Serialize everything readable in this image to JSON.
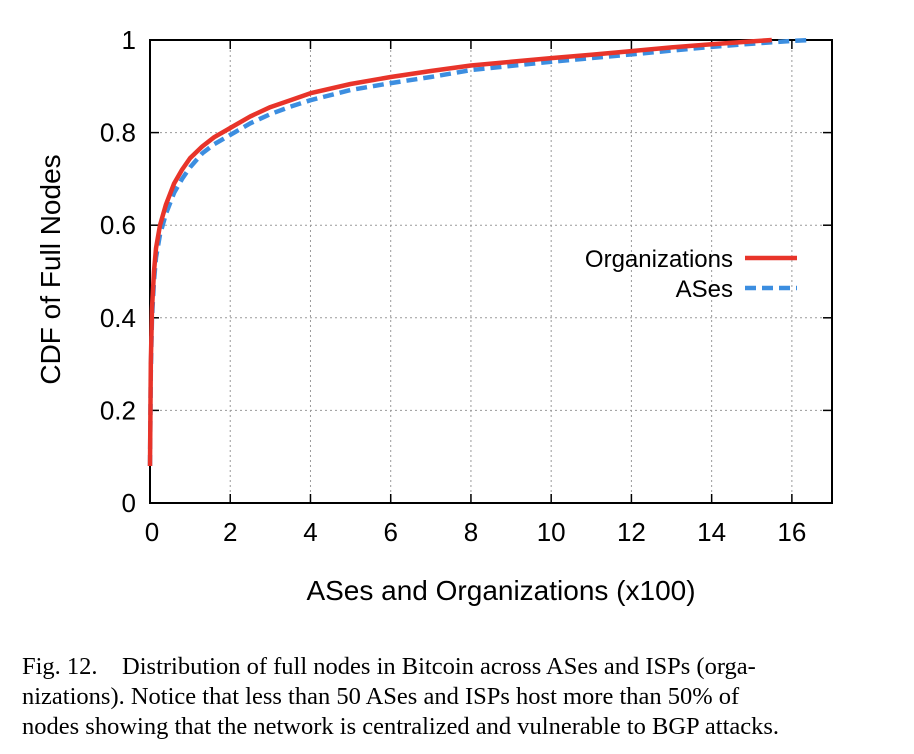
{
  "chart_data": {
    "type": "line",
    "title": "",
    "xlabel": "ASes and Organizations (x100)",
    "ylabel": "CDF of Full Nodes",
    "xlim": [
      0,
      17
    ],
    "ylim": [
      0,
      1
    ],
    "xticks": [
      0,
      2,
      4,
      6,
      8,
      10,
      12,
      14,
      16
    ],
    "yticks": [
      0,
      0.2,
      0.4,
      0.6,
      0.8,
      1
    ],
    "grid": true,
    "legend": "center-right",
    "series": [
      {
        "name": "Organizations",
        "color": "#e8342a",
        "style": "solid",
        "x": [
          0,
          0.02,
          0.05,
          0.1,
          0.15,
          0.25,
          0.4,
          0.6,
          0.8,
          1.0,
          1.3,
          1.6,
          2.0,
          2.5,
          3.0,
          3.5,
          4.0,
          5.0,
          6.0,
          7.0,
          8.0,
          9.0,
          10.0,
          11.0,
          12.0,
          13.0,
          14.0,
          15.0,
          15.5
        ],
        "y": [
          0.08,
          0.3,
          0.42,
          0.5,
          0.55,
          0.6,
          0.645,
          0.69,
          0.72,
          0.745,
          0.77,
          0.79,
          0.81,
          0.835,
          0.855,
          0.87,
          0.885,
          0.905,
          0.92,
          0.933,
          0.945,
          0.953,
          0.961,
          0.968,
          0.976,
          0.984,
          0.991,
          0.997,
          1.0
        ]
      },
      {
        "name": "ASes",
        "color": "#3c8ee0",
        "style": "dashed",
        "x": [
          0,
          0.02,
          0.05,
          0.1,
          0.15,
          0.25,
          0.4,
          0.6,
          0.8,
          1.0,
          1.3,
          1.6,
          2.0,
          2.5,
          3.0,
          3.5,
          4.0,
          5.0,
          6.0,
          7.0,
          8.0,
          9.0,
          10.0,
          11.0,
          12.0,
          13.0,
          14.0,
          15.0,
          16.0,
          16.5
        ],
        "y": [
          0.08,
          0.28,
          0.4,
          0.48,
          0.53,
          0.58,
          0.625,
          0.67,
          0.7,
          0.725,
          0.755,
          0.775,
          0.795,
          0.82,
          0.84,
          0.856,
          0.87,
          0.892,
          0.907,
          0.92,
          0.935,
          0.944,
          0.953,
          0.961,
          0.969,
          0.977,
          0.985,
          0.992,
          0.998,
          1.0
        ]
      }
    ]
  },
  "caption": {
    "lines": [
      "Fig. 12. Distribution of full nodes in Bitcoin across ASes and ISPs (orga-",
      "nizations). Notice that less than 50 ASes and ISPs host more than 50% of",
      "nodes showing that the network is centralized and vulnerable to BGP attacks."
    ]
  }
}
